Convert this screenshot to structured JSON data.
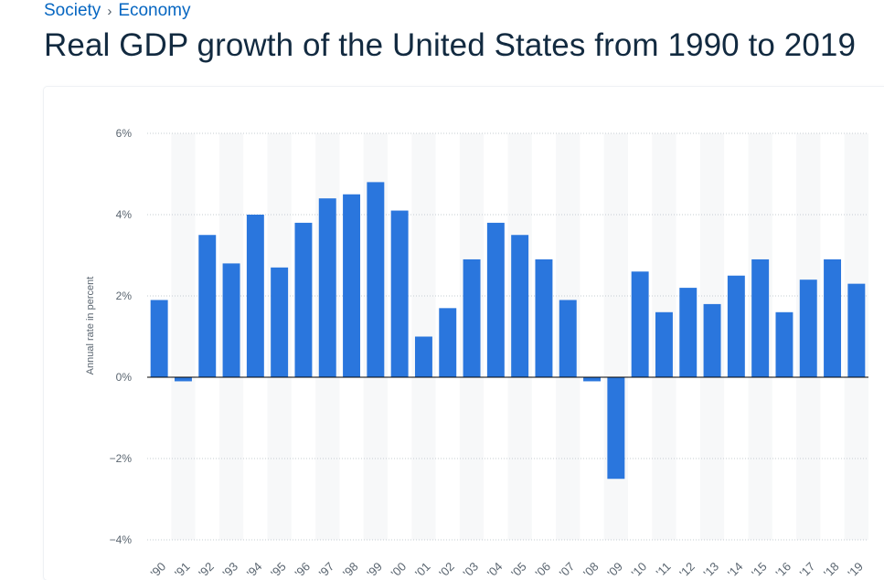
{
  "breadcrumb": {
    "items": [
      "Society",
      "Economy"
    ]
  },
  "page": {
    "title": "Real GDP growth of the United States from 1990 to 2019"
  },
  "chart_data": {
    "type": "bar",
    "title": "Real GDP growth of the United States from 1990 to 2019",
    "xlabel": "",
    "ylabel": "Annual rate in percent",
    "ylim": [
      -4,
      6
    ],
    "yticks": [
      6,
      4,
      2,
      0,
      -2,
      -4
    ],
    "ytick_labels": [
      "6%",
      "4%",
      "2%",
      "0%",
      "−2%",
      "−4%"
    ],
    "grid": true,
    "categories": [
      "'90",
      "'91",
      "'92",
      "'93",
      "'94",
      "'95",
      "'96",
      "'97",
      "'98",
      "'99",
      "'00",
      "'01",
      "'02",
      "'03",
      "'04",
      "'05",
      "'06",
      "'07",
      "'08",
      "'09",
      "'10",
      "'11",
      "'12",
      "'13",
      "'14",
      "'15",
      "'16",
      "'17",
      "'18",
      "'19"
    ],
    "values": [
      1.9,
      -0.1,
      3.5,
      2.8,
      4.0,
      2.7,
      3.8,
      4.4,
      4.5,
      4.8,
      4.1,
      1.0,
      1.7,
      2.9,
      3.8,
      3.5,
      2.9,
      1.9,
      -0.1,
      -2.5,
      2.6,
      1.6,
      2.2,
      1.8,
      2.5,
      2.9,
      1.6,
      2.4,
      2.9,
      2.3
    ],
    "colors": {
      "bar": "#2a76dd",
      "band": "#f7f8f9",
      "grid": "#c6ccd2",
      "zero": "#000000",
      "text": "#5a6570"
    }
  }
}
